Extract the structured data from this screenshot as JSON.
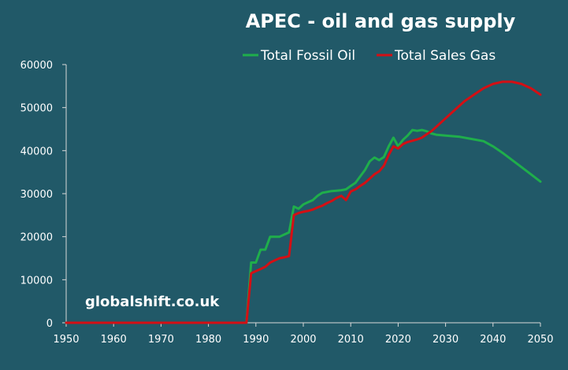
{
  "chart_data": {
    "type": "line",
    "title": "APEC - oil and gas supply",
    "xlabel": "",
    "ylabel": "",
    "xlim": [
      1950,
      2050
    ],
    "ylim": [
      0,
      60000
    ],
    "x_ticks": [
      "1950",
      "1960",
      "1970",
      "1980",
      "1990",
      "2000",
      "2010",
      "2020",
      "2030",
      "2040",
      "2050"
    ],
    "y_ticks": [
      "0",
      "10000",
      "20000",
      "30000",
      "40000",
      "50000",
      "60000"
    ],
    "grid": false,
    "legend_position": "top",
    "series": [
      {
        "name": "Total Fossil Oil",
        "color": "#1fae4b",
        "x": [
          1950,
          1988,
          1989,
          1990,
          1991,
          1992,
          1993,
          1994,
          1995,
          1996,
          1997,
          1998,
          1999,
          2000,
          2001,
          2002,
          2003,
          2004,
          2005,
          2006,
          2007,
          2008,
          2009,
          2010,
          2011,
          2012,
          2013,
          2014,
          2015,
          2016,
          2017,
          2018,
          2019,
          2020,
          2021,
          2022,
          2023,
          2024,
          2025,
          2026,
          2027,
          2028,
          2030,
          2033,
          2035,
          2038,
          2040,
          2042,
          2045,
          2048,
          2050
        ],
        "values": [
          0,
          0,
          14000,
          14000,
          17000,
          17000,
          20000,
          20000,
          20000,
          20500,
          21000,
          27000,
          26500,
          27500,
          28000,
          28500,
          29500,
          30200,
          30400,
          30600,
          30700,
          30800,
          31000,
          31800,
          32500,
          34000,
          35500,
          37500,
          38400,
          37800,
          38500,
          41000,
          43000,
          41000,
          42500,
          43500,
          44800,
          44600,
          44800,
          44500,
          44000,
          43700,
          43500,
          43200,
          42800,
          42200,
          41000,
          39500,
          37000,
          34500,
          32800
        ]
      },
      {
        "name": "Total Sales Gas",
        "color": "#d40f14",
        "x": [
          1950,
          1988,
          1989,
          1990,
          1991,
          1992,
          1993,
          1994,
          1995,
          1996,
          1997,
          1998,
          1999,
          2000,
          2001,
          2002,
          2003,
          2004,
          2005,
          2006,
          2007,
          2008,
          2009,
          2010,
          2011,
          2012,
          2013,
          2014,
          2015,
          2016,
          2017,
          2018,
          2019,
          2020,
          2021,
          2022,
          2023,
          2024,
          2025,
          2026,
          2027,
          2028,
          2030,
          2032,
          2034,
          2036,
          2038,
          2040,
          2042,
          2044,
          2046,
          2048,
          2050
        ],
        "values": [
          0,
          0,
          11500,
          12000,
          12500,
          13000,
          14000,
          14500,
          15000,
          15200,
          15500,
          25000,
          25500,
          25800,
          26000,
          26300,
          26800,
          27200,
          27800,
          28300,
          29000,
          29500,
          28500,
          30500,
          31000,
          31800,
          32500,
          33500,
          34500,
          35200,
          36500,
          39000,
          41000,
          40500,
          41500,
          42000,
          42300,
          42600,
          43000,
          43800,
          44500,
          45500,
          47500,
          49500,
          51500,
          53000,
          54500,
          55500,
          56000,
          56000,
          55500,
          54500,
          53000
        ]
      }
    ]
  },
  "watermark": "globalshift.co.uk"
}
